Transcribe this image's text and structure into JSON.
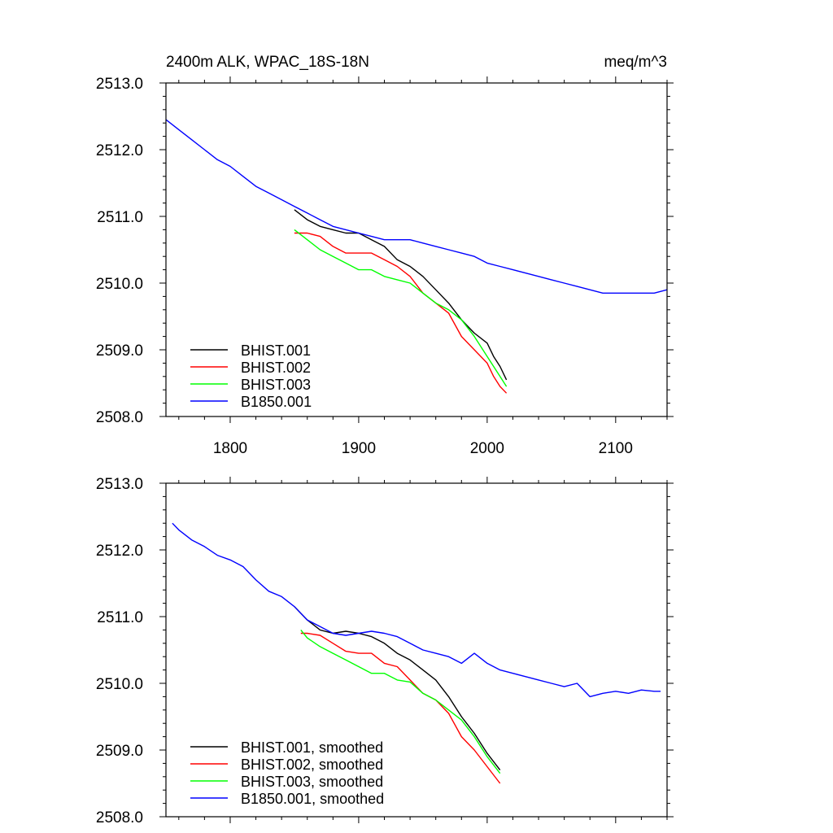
{
  "chart_data": [
    {
      "type": "line",
      "title": "2400m ALK, WPAC_18S-18N",
      "units_label": "meq/m^3",
      "xlabel": "",
      "ylabel": "",
      "xlim": [
        1750,
        2140
      ],
      "ylim": [
        2508.0,
        2513.0
      ],
      "x_ticks": [
        1800,
        1900,
        2000,
        2100
      ],
      "x_tick_labels": [
        "1800",
        "1900",
        "2000",
        "2100"
      ],
      "y_ticks": [
        2508.0,
        2509.0,
        2510.0,
        2511.0,
        2512.0,
        2513.0
      ],
      "y_tick_labels": [
        "2508.0",
        "2509.0",
        "2510.0",
        "2511.0",
        "2512.0",
        "2513.0"
      ],
      "legend_position": "bottom-left",
      "grid": false,
      "series": [
        {
          "name": "BHIST.001",
          "color": "#000000",
          "x": [
            1850,
            1860,
            1870,
            1880,
            1890,
            1900,
            1910,
            1920,
            1930,
            1940,
            1950,
            1960,
            1970,
            1980,
            1990,
            2000,
            2005,
            2010,
            2015
          ],
          "y": [
            2511.1,
            2510.95,
            2510.85,
            2510.8,
            2510.75,
            2510.75,
            2510.65,
            2510.55,
            2510.35,
            2510.25,
            2510.1,
            2509.9,
            2509.7,
            2509.45,
            2509.25,
            2509.1,
            2508.9,
            2508.75,
            2508.55
          ]
        },
        {
          "name": "BHIST.002",
          "color": "#ff0000",
          "x": [
            1850,
            1860,
            1870,
            1880,
            1890,
            1900,
            1910,
            1920,
            1930,
            1940,
            1950,
            1960,
            1970,
            1980,
            1990,
            2000,
            2005,
            2010,
            2015
          ],
          "y": [
            2510.75,
            2510.75,
            2510.7,
            2510.55,
            2510.45,
            2510.45,
            2510.45,
            2510.35,
            2510.25,
            2510.1,
            2509.85,
            2509.7,
            2509.55,
            2509.2,
            2509.0,
            2508.8,
            2508.6,
            2508.45,
            2508.35
          ]
        },
        {
          "name": "BHIST.003",
          "color": "#00ff00",
          "x": [
            1850,
            1860,
            1870,
            1880,
            1890,
            1900,
            1910,
            1920,
            1930,
            1940,
            1950,
            1960,
            1970,
            1980,
            1990,
            2000,
            2005,
            2010,
            2015
          ],
          "y": [
            2510.8,
            2510.65,
            2510.5,
            2510.4,
            2510.3,
            2510.2,
            2510.2,
            2510.1,
            2510.05,
            2510.0,
            2509.85,
            2509.7,
            2509.6,
            2509.45,
            2509.2,
            2508.9,
            2508.75,
            2508.6,
            2508.45
          ]
        },
        {
          "name": "B1850.001",
          "color": "#0000ff",
          "x": [
            1750,
            1760,
            1770,
            1780,
            1790,
            1800,
            1810,
            1820,
            1830,
            1840,
            1850,
            1860,
            1870,
            1880,
            1890,
            1900,
            1910,
            1920,
            1930,
            1940,
            1950,
            1960,
            1970,
            1980,
            1990,
            2000,
            2010,
            2020,
            2030,
            2040,
            2050,
            2060,
            2070,
            2080,
            2090,
            2100,
            2110,
            2120,
            2130,
            2140
          ],
          "y": [
            2512.45,
            2512.3,
            2512.15,
            2512.0,
            2511.85,
            2511.75,
            2511.6,
            2511.45,
            2511.35,
            2511.25,
            2511.15,
            2511.05,
            2510.95,
            2510.85,
            2510.8,
            2510.75,
            2510.7,
            2510.65,
            2510.65,
            2510.65,
            2510.6,
            2510.55,
            2510.5,
            2510.45,
            2510.4,
            2510.3,
            2510.25,
            2510.2,
            2510.15,
            2510.1,
            2510.05,
            2510.0,
            2509.95,
            2509.9,
            2509.85,
            2509.85,
            2509.85,
            2509.85,
            2509.85,
            2509.9
          ]
        }
      ]
    },
    {
      "type": "line",
      "title": "",
      "xlabel": "",
      "ylabel": "",
      "xlim": [
        1750,
        2140
      ],
      "ylim": [
        2508.0,
        2513.0
      ],
      "x_ticks": [
        1800,
        1900,
        2000,
        2100
      ],
      "y_ticks": [
        2508.0,
        2509.0,
        2510.0,
        2511.0,
        2512.0,
        2513.0
      ],
      "y_tick_labels": [
        "2508.0",
        "2509.0",
        "2510.0",
        "2511.0",
        "2512.0",
        "2513.0"
      ],
      "legend_position": "bottom-left",
      "grid": false,
      "series": [
        {
          "name": "BHIST.001, smoothed",
          "color": "#000000",
          "x": [
            1850,
            1860,
            1870,
            1880,
            1890,
            1900,
            1910,
            1920,
            1930,
            1940,
            1950,
            1960,
            1970,
            1980,
            1990,
            2000,
            2010
          ],
          "y": [
            2511.15,
            2510.95,
            2510.8,
            2510.75,
            2510.78,
            2510.75,
            2510.7,
            2510.6,
            2510.45,
            2510.35,
            2510.2,
            2510.05,
            2509.8,
            2509.5,
            2509.25,
            2508.95,
            2508.7
          ]
        },
        {
          "name": "BHIST.002, smoothed",
          "color": "#ff0000",
          "x": [
            1855,
            1860,
            1870,
            1880,
            1890,
            1900,
            1910,
            1920,
            1930,
            1940,
            1950,
            1960,
            1970,
            1980,
            1990,
            2000,
            2010
          ],
          "y": [
            2510.75,
            2510.75,
            2510.72,
            2510.6,
            2510.48,
            2510.45,
            2510.45,
            2510.3,
            2510.25,
            2510.05,
            2509.85,
            2509.75,
            2509.55,
            2509.2,
            2509.0,
            2508.75,
            2508.5
          ]
        },
        {
          "name": "BHIST.003, smoothed",
          "color": "#00ff00",
          "x": [
            1855,
            1860,
            1870,
            1880,
            1890,
            1900,
            1910,
            1920,
            1930,
            1940,
            1950,
            1960,
            1970,
            1980,
            1990,
            2000,
            2010
          ],
          "y": [
            2510.8,
            2510.68,
            2510.55,
            2510.45,
            2510.35,
            2510.25,
            2510.15,
            2510.15,
            2510.05,
            2510.02,
            2509.85,
            2509.75,
            2509.6,
            2509.45,
            2509.2,
            2508.9,
            2508.65
          ]
        },
        {
          "name": "B1850.001, smoothed",
          "color": "#0000ff",
          "x": [
            1755,
            1760,
            1770,
            1780,
            1790,
            1800,
            1810,
            1820,
            1830,
            1840,
            1850,
            1860,
            1870,
            1880,
            1890,
            1900,
            1910,
            1920,
            1930,
            1940,
            1950,
            1960,
            1970,
            1980,
            1990,
            2000,
            2010,
            2020,
            2030,
            2040,
            2050,
            2060,
            2070,
            2080,
            2090,
            2100,
            2110,
            2120,
            2130,
            2135
          ],
          "y": [
            2512.4,
            2512.3,
            2512.15,
            2512.05,
            2511.92,
            2511.85,
            2511.75,
            2511.55,
            2511.38,
            2511.3,
            2511.15,
            2510.95,
            2510.85,
            2510.75,
            2510.72,
            2510.75,
            2510.78,
            2510.75,
            2510.7,
            2510.6,
            2510.5,
            2510.45,
            2510.4,
            2510.3,
            2510.45,
            2510.3,
            2510.2,
            2510.15,
            2510.1,
            2510.05,
            2510.0,
            2509.95,
            2510.0,
            2509.8,
            2509.85,
            2509.88,
            2509.85,
            2509.9,
            2509.88,
            2509.88
          ]
        }
      ]
    }
  ]
}
